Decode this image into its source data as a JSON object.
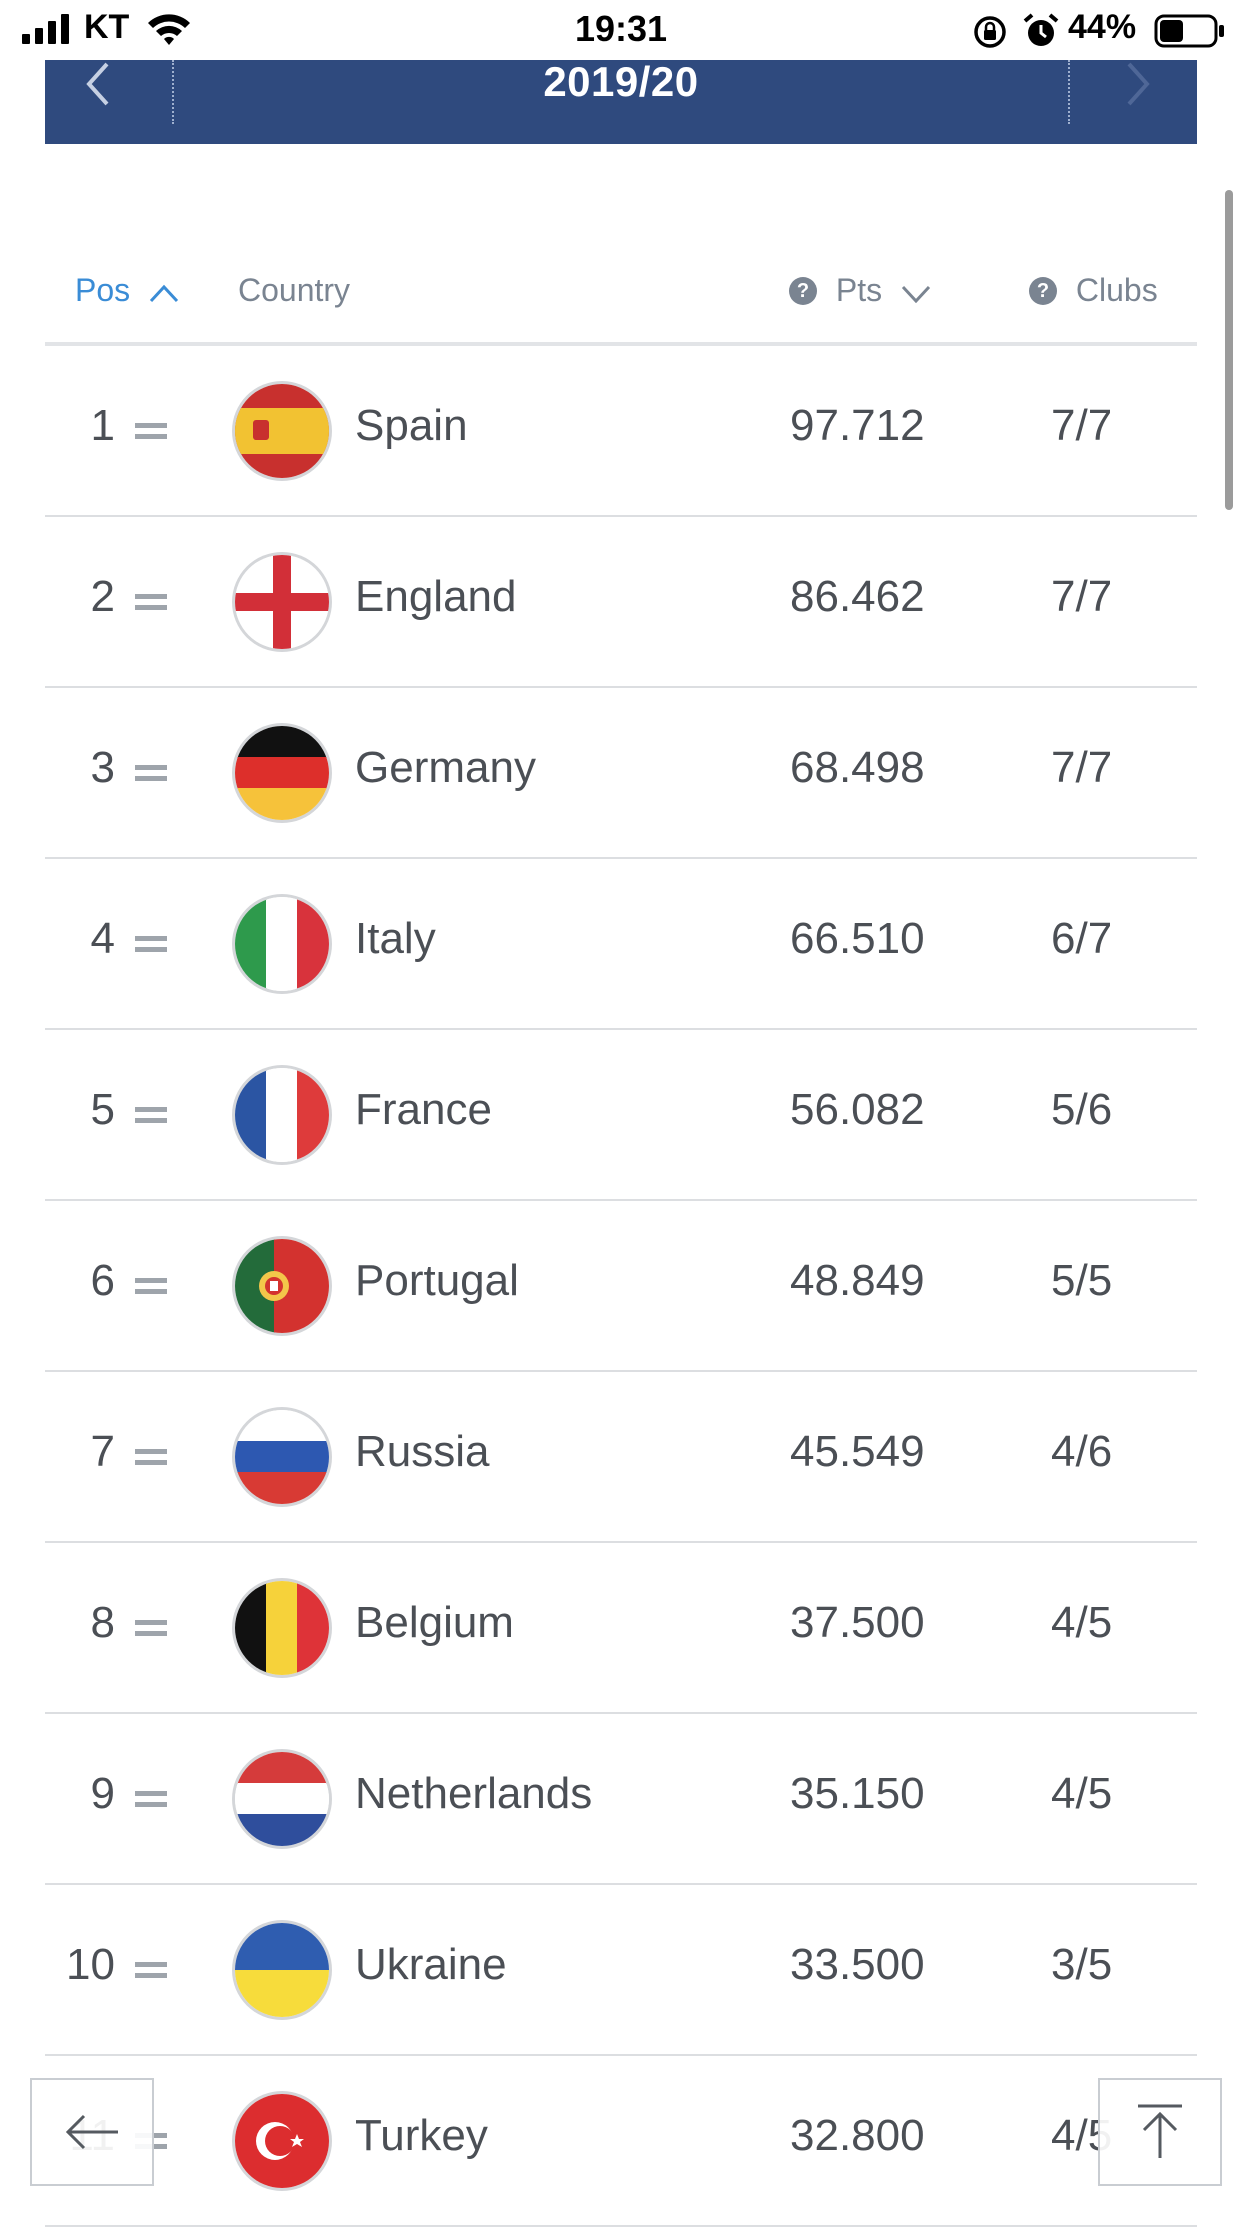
{
  "status_bar": {
    "carrier": "KT",
    "time": "19:31",
    "battery_percent": "44%",
    "battery_level": 0.44
  },
  "season": {
    "title": "2019/20"
  },
  "table": {
    "headers": {
      "pos": "Pos",
      "country": "Country",
      "pts": "Pts",
      "clubs": "Clubs"
    },
    "help_glyph": "?",
    "rows": [
      {
        "pos": "1",
        "country": "Spain",
        "pts": "97.712",
        "clubs": "7/7",
        "flag_icon": "spain-flag-icon"
      },
      {
        "pos": "2",
        "country": "England",
        "pts": "86.462",
        "clubs": "7/7",
        "flag_icon": "england-flag-icon"
      },
      {
        "pos": "3",
        "country": "Germany",
        "pts": "68.498",
        "clubs": "7/7",
        "flag_icon": "germany-flag-icon"
      },
      {
        "pos": "4",
        "country": "Italy",
        "pts": "66.510",
        "clubs": "6/7",
        "flag_icon": "italy-flag-icon"
      },
      {
        "pos": "5",
        "country": "France",
        "pts": "56.082",
        "clubs": "5/6",
        "flag_icon": "france-flag-icon"
      },
      {
        "pos": "6",
        "country": "Portugal",
        "pts": "48.849",
        "clubs": "5/5",
        "flag_icon": "portugal-flag-icon"
      },
      {
        "pos": "7",
        "country": "Russia",
        "pts": "45.549",
        "clubs": "4/6",
        "flag_icon": "russia-flag-icon"
      },
      {
        "pos": "8",
        "country": "Belgium",
        "pts": "37.500",
        "clubs": "4/5",
        "flag_icon": "belgium-flag-icon"
      },
      {
        "pos": "9",
        "country": "Netherlands",
        "pts": "35.150",
        "clubs": "4/5",
        "flag_icon": "netherlands-flag-icon"
      },
      {
        "pos": "10",
        "country": "Ukraine",
        "pts": "33.500",
        "clubs": "3/5",
        "flag_icon": "ukraine-flag-icon"
      },
      {
        "pos": "11",
        "country": "Turkey",
        "pts": "32.800",
        "clubs": "4/5",
        "flag_icon": "turkey-flag-icon"
      }
    ]
  },
  "icons": {
    "season_prev": "chevron-left-icon",
    "season_next": "chevron-right-icon",
    "back": "arrow-left-icon",
    "scroll_top": "arrow-up-to-top-icon"
  },
  "colors": {
    "season_bar": "#2f4a7e",
    "sort_active": "#3a8cd6",
    "text": "#4b4f55",
    "muted": "#7a8491"
  }
}
